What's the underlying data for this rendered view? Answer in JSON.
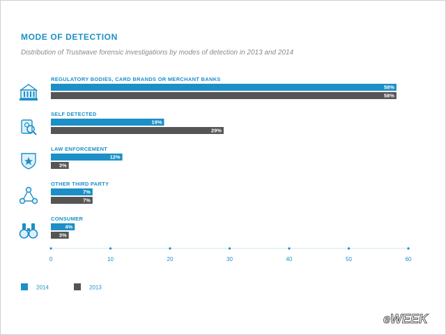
{
  "title": "MODE OF DETECTION",
  "subtitle": "Distribution of Trustwave forensic investigations by modes of detection in 2013 and 2014",
  "colors": {
    "series_2014": "#1b8fc6",
    "series_2013": "#555555",
    "accent": "#1b8fc6"
  },
  "chart_data": {
    "type": "bar",
    "orientation": "horizontal",
    "categories": [
      "REGULATORY BODIES, CARD BRANDS OR MERCHANT BANKS",
      "SELF DETECTED",
      "LAW ENFORCEMENT",
      "OTHER THIRD PARTY",
      "CONSUMER"
    ],
    "category_icons": [
      "bank-building-icon",
      "self-detected-icon",
      "police-badge-icon",
      "network-icon",
      "binoculars-icon"
    ],
    "series": [
      {
        "name": "2014",
        "values": [
          58,
          19,
          12,
          7,
          4
        ]
      },
      {
        "name": "2013",
        "values": [
          58,
          29,
          3,
          7,
          3
        ]
      }
    ],
    "data_labels": [
      [
        "58%",
        "19%",
        "12%",
        "7%",
        "4%"
      ],
      [
        "58%",
        "29%",
        "3%",
        "7%",
        "3%"
      ]
    ],
    "xlim": [
      0,
      60
    ],
    "xticks": [
      "0",
      "10",
      "20",
      "30",
      "40",
      "50",
      "60"
    ],
    "legend_position": "bottom-left",
    "grid": false
  },
  "watermark": {
    "text": "eWEEK"
  }
}
